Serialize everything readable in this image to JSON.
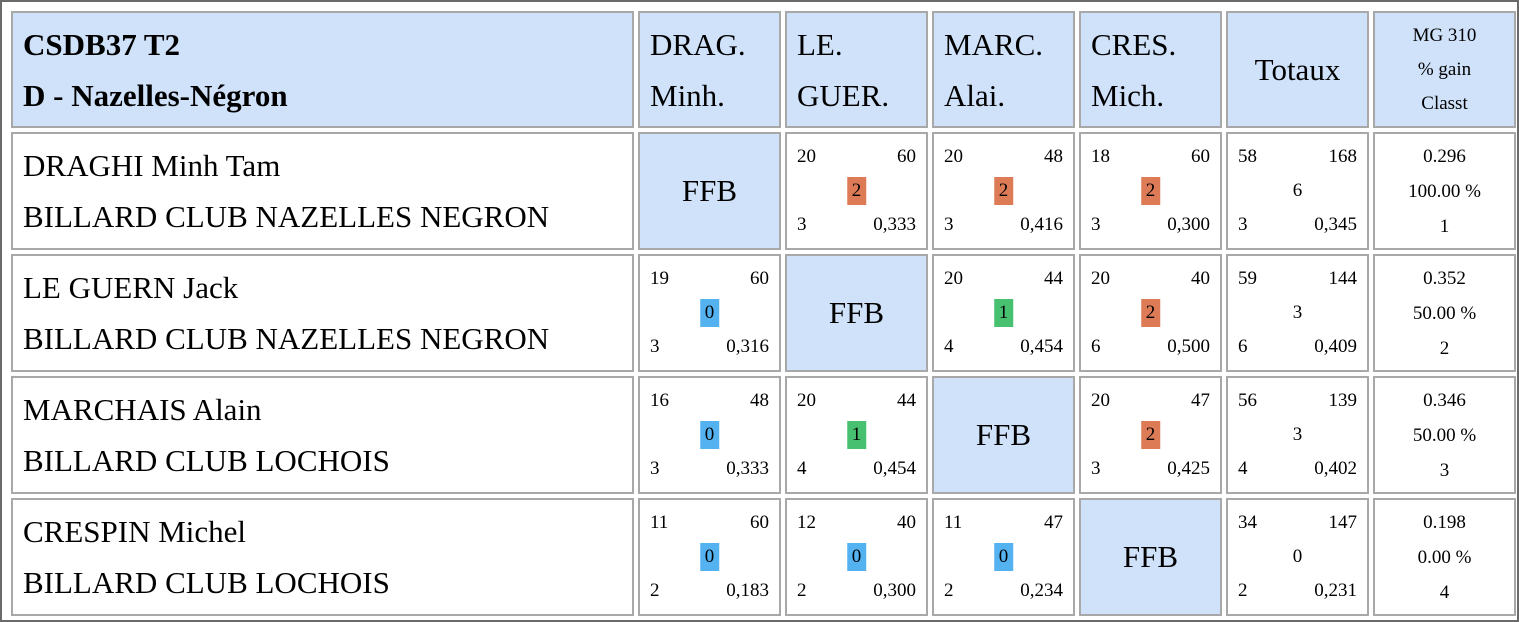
{
  "header": {
    "title_line1": "CSDB37 T2",
    "title_line2": "D - Nazelles-Négron",
    "columns": [
      {
        "line1": "DRAG.",
        "line2": "Minh."
      },
      {
        "line1": "LE.",
        "line2": "GUER."
      },
      {
        "line1": "MARC.",
        "line2": "Alai."
      },
      {
        "line1": "CRES.",
        "line2": "Mich."
      }
    ],
    "totals_label": "Totaux",
    "mg_line1": "MG 310",
    "mg_line2": "% gain",
    "mg_line3": "Classt"
  },
  "ffb_label": "FFB",
  "colors": {
    "header_bg": "#cfe2fa",
    "points_0": "#54b2f0",
    "points_1": "#47c06f",
    "points_2": "#dd7b57"
  },
  "players": [
    {
      "name": "DRAGHI Minh Tam",
      "club": "BILLARD CLUB NAZELLES NEGRON",
      "matches": [
        null,
        {
          "pts": "20",
          "reprises": "60",
          "match_points": "2",
          "mp_level": 2,
          "series": "3",
          "avg": "0,333"
        },
        {
          "pts": "20",
          "reprises": "48",
          "match_points": "2",
          "mp_level": 2,
          "series": "3",
          "avg": "0,416"
        },
        {
          "pts": "18",
          "reprises": "60",
          "match_points": "2",
          "mp_level": 2,
          "series": "3",
          "avg": "0,300"
        }
      ],
      "totals": {
        "pts": "58",
        "reprises": "168",
        "match_points": "6",
        "series": "3",
        "avg": "0,345"
      },
      "result": {
        "mg": "0.296",
        "gain": "100.00 %",
        "rank": "1"
      }
    },
    {
      "name": "LE GUERN Jack",
      "club": "BILLARD CLUB NAZELLES NEGRON",
      "matches": [
        {
          "pts": "19",
          "reprises": "60",
          "match_points": "0",
          "mp_level": 0,
          "series": "3",
          "avg": "0,316"
        },
        null,
        {
          "pts": "20",
          "reprises": "44",
          "match_points": "1",
          "mp_level": 1,
          "series": "4",
          "avg": "0,454"
        },
        {
          "pts": "20",
          "reprises": "40",
          "match_points": "2",
          "mp_level": 2,
          "series": "6",
          "avg": "0,500"
        }
      ],
      "totals": {
        "pts": "59",
        "reprises": "144",
        "match_points": "3",
        "series": "6",
        "avg": "0,409"
      },
      "result": {
        "mg": "0.352",
        "gain": "50.00 %",
        "rank": "2"
      }
    },
    {
      "name": "MARCHAIS Alain",
      "club": "BILLARD CLUB LOCHOIS",
      "matches": [
        {
          "pts": "16",
          "reprises": "48",
          "match_points": "0",
          "mp_level": 0,
          "series": "3",
          "avg": "0,333"
        },
        {
          "pts": "20",
          "reprises": "44",
          "match_points": "1",
          "mp_level": 1,
          "series": "4",
          "avg": "0,454"
        },
        null,
        {
          "pts": "20",
          "reprises": "47",
          "match_points": "2",
          "mp_level": 2,
          "series": "3",
          "avg": "0,425"
        }
      ],
      "totals": {
        "pts": "56",
        "reprises": "139",
        "match_points": "3",
        "series": "4",
        "avg": "0,402"
      },
      "result": {
        "mg": "0.346",
        "gain": "50.00 %",
        "rank": "3"
      }
    },
    {
      "name": "CRESPIN Michel",
      "club": "BILLARD CLUB LOCHOIS",
      "matches": [
        {
          "pts": "11",
          "reprises": "60",
          "match_points": "0",
          "mp_level": 0,
          "series": "2",
          "avg": "0,183"
        },
        {
          "pts": "12",
          "reprises": "40",
          "match_points": "0",
          "mp_level": 0,
          "series": "2",
          "avg": "0,300"
        },
        {
          "pts": "11",
          "reprises": "47",
          "match_points": "0",
          "mp_level": 0,
          "series": "2",
          "avg": "0,234"
        },
        null
      ],
      "totals": {
        "pts": "34",
        "reprises": "147",
        "match_points": "0",
        "series": "2",
        "avg": "0,231"
      },
      "result": {
        "mg": "0.198",
        "gain": "0.00 %",
        "rank": "4"
      }
    }
  ]
}
